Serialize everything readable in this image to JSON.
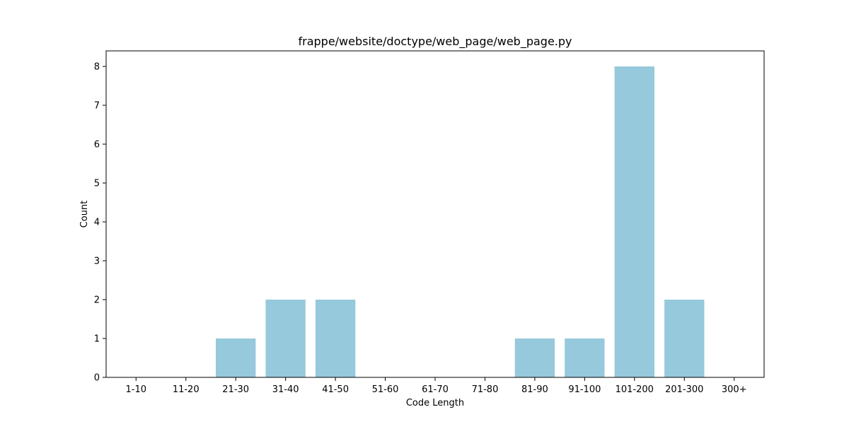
{
  "chart_data": {
    "type": "bar",
    "title": "frappe/website/doctype/web_page/web_page.py",
    "xlabel": "Code Length",
    "ylabel": "Count",
    "categories": [
      "1-10",
      "11-20",
      "21-30",
      "31-40",
      "41-50",
      "51-60",
      "61-70",
      "71-80",
      "81-90",
      "91-100",
      "101-200",
      "201-300",
      "300+"
    ],
    "values": [
      0,
      0,
      1,
      2,
      2,
      0,
      0,
      0,
      1,
      1,
      8,
      2,
      0
    ],
    "ylim": [
      0,
      8.4
    ],
    "yticks": [
      0,
      1,
      2,
      3,
      4,
      5,
      6,
      7,
      8
    ],
    "bar_color": "#96c9dc",
    "grid": false,
    "legend": "none"
  }
}
